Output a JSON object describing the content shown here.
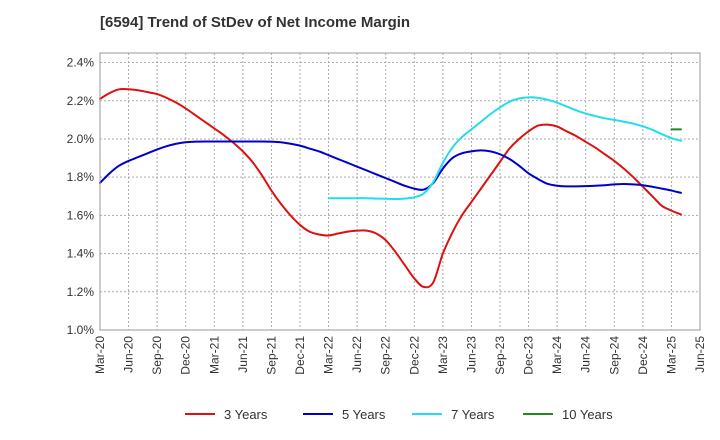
{
  "chart_data": {
    "type": "line",
    "title": "[6594]  Trend of StDev of Net Income Margin",
    "xlabel": "",
    "ylabel": "",
    "x_ticks": [
      "Mar-20",
      "Jun-20",
      "Sep-20",
      "Dec-20",
      "Mar-21",
      "Jun-21",
      "Sep-21",
      "Dec-21",
      "Mar-22",
      "Jun-22",
      "Sep-22",
      "Dec-22",
      "Mar-23",
      "Jun-23",
      "Sep-23",
      "Dec-23",
      "Mar-24",
      "Jun-24",
      "Sep-24",
      "Dec-24",
      "Mar-25",
      "Jun-25"
    ],
    "y_ticks": [
      "1.0%",
      "1.2%",
      "1.4%",
      "1.6%",
      "1.8%",
      "2.0%",
      "2.2%",
      "2.4%"
    ],
    "ylim": [
      1.0,
      2.45
    ],
    "grid": true,
    "legend_position": "bottom",
    "series": [
      {
        "name": "3 Years",
        "color": "#dd1111",
        "points": [
          [
            "Mar-20",
            2.21
          ],
          [
            "Apr-20",
            2.24
          ],
          [
            "May-20",
            2.26
          ],
          [
            "Jun-20",
            2.26
          ],
          [
            "Jul-20",
            2.255
          ],
          [
            "Aug-20",
            2.245
          ],
          [
            "Sep-20",
            2.235
          ],
          [
            "Oct-20",
            2.215
          ],
          [
            "Nov-20",
            2.19
          ],
          [
            "Dec-20",
            2.16
          ],
          [
            "Jan-21",
            2.125
          ],
          [
            "Feb-21",
            2.09
          ],
          [
            "Mar-21",
            2.055
          ],
          [
            "Apr-21",
            2.02
          ],
          [
            "May-21",
            1.98
          ],
          [
            "Jun-21",
            1.935
          ],
          [
            "Jul-21",
            1.88
          ],
          [
            "Aug-21",
            1.81
          ],
          [
            "Sep-21",
            1.73
          ],
          [
            "Oct-21",
            1.66
          ],
          [
            "Nov-21",
            1.6
          ],
          [
            "Dec-21",
            1.55
          ],
          [
            "Jan-22",
            1.515
          ],
          [
            "Feb-22",
            1.5
          ],
          [
            "Mar-22",
            1.495
          ],
          [
            "Apr-22",
            1.505
          ],
          [
            "May-22",
            1.515
          ],
          [
            "Jun-22",
            1.52
          ],
          [
            "Jul-22",
            1.52
          ],
          [
            "Aug-22",
            1.505
          ],
          [
            "Sep-22",
            1.47
          ],
          [
            "Oct-22",
            1.41
          ],
          [
            "Nov-22",
            1.34
          ],
          [
            "Dec-22",
            1.27
          ],
          [
            "Jan-23",
            1.225
          ],
          [
            "Feb-23",
            1.25
          ],
          [
            "Mar-23",
            1.4
          ],
          [
            "Apr-23",
            1.51
          ],
          [
            "May-23",
            1.6
          ],
          [
            "Jun-23",
            1.67
          ],
          [
            "Jul-23",
            1.74
          ],
          [
            "Aug-23",
            1.81
          ],
          [
            "Sep-23",
            1.88
          ],
          [
            "Oct-23",
            1.95
          ],
          [
            "Nov-23",
            2.0
          ],
          [
            "Dec-23",
            2.04
          ],
          [
            "Jan-24",
            2.07
          ],
          [
            "Feb-24",
            2.075
          ],
          [
            "Mar-24",
            2.065
          ],
          [
            "Apr-24",
            2.04
          ],
          [
            "May-24",
            2.015
          ],
          [
            "Jun-24",
            1.985
          ],
          [
            "Jul-24",
            1.955
          ],
          [
            "Aug-24",
            1.92
          ],
          [
            "Sep-24",
            1.885
          ],
          [
            "Oct-24",
            1.845
          ],
          [
            "Nov-24",
            1.8
          ],
          [
            "Dec-24",
            1.75
          ],
          [
            "Jan-25",
            1.7
          ],
          [
            "Feb-25",
            1.65
          ],
          [
            "Mar-25",
            1.625
          ],
          [
            "Apr-25",
            1.605
          ]
        ]
      },
      {
        "name": "5 Years",
        "color": "#0000cc",
        "points": [
          [
            "Mar-20",
            1.77
          ],
          [
            "Apr-20",
            1.82
          ],
          [
            "May-20",
            1.86
          ],
          [
            "Jun-20",
            1.885
          ],
          [
            "Jul-20",
            1.905
          ],
          [
            "Aug-20",
            1.925
          ],
          [
            "Sep-20",
            1.945
          ],
          [
            "Oct-20",
            1.962
          ],
          [
            "Nov-20",
            1.975
          ],
          [
            "Dec-20",
            1.983
          ],
          [
            "Jan-21",
            1.986
          ],
          [
            "Feb-21",
            1.987
          ],
          [
            "Mar-21",
            1.987
          ],
          [
            "Apr-21",
            1.987
          ],
          [
            "May-21",
            1.987
          ],
          [
            "Jun-21",
            1.987
          ],
          [
            "Jul-21",
            1.987
          ],
          [
            "Aug-21",
            1.987
          ],
          [
            "Sep-21",
            1.986
          ],
          [
            "Oct-21",
            1.983
          ],
          [
            "Nov-21",
            1.975
          ],
          [
            "Dec-21",
            1.965
          ],
          [
            "Jan-22",
            1.95
          ],
          [
            "Feb-22",
            1.935
          ],
          [
            "Mar-22",
            1.915
          ],
          [
            "Apr-22",
            1.895
          ],
          [
            "May-22",
            1.875
          ],
          [
            "Jun-22",
            1.855
          ],
          [
            "Jul-22",
            1.835
          ],
          [
            "Aug-22",
            1.815
          ],
          [
            "Sep-22",
            1.795
          ],
          [
            "Oct-22",
            1.775
          ],
          [
            "Nov-22",
            1.755
          ],
          [
            "Dec-22",
            1.74
          ],
          [
            "Jan-23",
            1.735
          ],
          [
            "Feb-23",
            1.77
          ],
          [
            "Mar-23",
            1.845
          ],
          [
            "Apr-23",
            1.9
          ],
          [
            "May-23",
            1.925
          ],
          [
            "Jun-23",
            1.935
          ],
          [
            "Jul-23",
            1.94
          ],
          [
            "Aug-23",
            1.935
          ],
          [
            "Sep-23",
            1.92
          ],
          [
            "Oct-23",
            1.895
          ],
          [
            "Nov-23",
            1.86
          ],
          [
            "Dec-23",
            1.82
          ],
          [
            "Jan-24",
            1.79
          ],
          [
            "Feb-24",
            1.765
          ],
          [
            "Mar-24",
            1.755
          ],
          [
            "Apr-24",
            1.752
          ],
          [
            "May-24",
            1.752
          ],
          [
            "Jun-24",
            1.753
          ],
          [
            "Jul-24",
            1.755
          ],
          [
            "Aug-24",
            1.758
          ],
          [
            "Sep-24",
            1.762
          ],
          [
            "Oct-24",
            1.764
          ],
          [
            "Nov-24",
            1.762
          ],
          [
            "Dec-24",
            1.758
          ],
          [
            "Jan-25",
            1.75
          ],
          [
            "Feb-25",
            1.74
          ],
          [
            "Mar-25",
            1.73
          ],
          [
            "Apr-25",
            1.718
          ]
        ]
      },
      {
        "name": "7 Years",
        "color": "#22ddee",
        "points": [
          [
            "Mar-22",
            1.69
          ],
          [
            "Apr-22",
            1.69
          ],
          [
            "May-22",
            1.69
          ],
          [
            "Jun-22",
            1.69
          ],
          [
            "Jul-22",
            1.69
          ],
          [
            "Aug-22",
            1.688
          ],
          [
            "Sep-22",
            1.687
          ],
          [
            "Oct-22",
            1.686
          ],
          [
            "Nov-22",
            1.688
          ],
          [
            "Dec-22",
            1.695
          ],
          [
            "Jan-23",
            1.715
          ],
          [
            "Feb-23",
            1.775
          ],
          [
            "Mar-23",
            1.875
          ],
          [
            "Apr-23",
            1.955
          ],
          [
            "May-23",
            2.01
          ],
          [
            "Jun-23",
            2.05
          ],
          [
            "Jul-23",
            2.09
          ],
          [
            "Aug-23",
            2.13
          ],
          [
            "Sep-23",
            2.165
          ],
          [
            "Oct-23",
            2.195
          ],
          [
            "Nov-23",
            2.212
          ],
          [
            "Dec-23",
            2.218
          ],
          [
            "Jan-24",
            2.215
          ],
          [
            "Feb-24",
            2.205
          ],
          [
            "Mar-24",
            2.19
          ],
          [
            "Apr-24",
            2.17
          ],
          [
            "May-24",
            2.15
          ],
          [
            "Jun-24",
            2.133
          ],
          [
            "Jul-24",
            2.12
          ],
          [
            "Aug-24",
            2.108
          ],
          [
            "Sep-24",
            2.1
          ],
          [
            "Oct-24",
            2.09
          ],
          [
            "Nov-24",
            2.08
          ],
          [
            "Dec-24",
            2.066
          ],
          [
            "Jan-25",
            2.048
          ],
          [
            "Feb-25",
            2.025
          ],
          [
            "Mar-25",
            2.005
          ],
          [
            "Apr-25",
            1.99
          ]
        ]
      },
      {
        "name": "10 Years",
        "color": "#228822",
        "points": [
          [
            "Mar-25",
            2.05
          ],
          [
            "Apr-25",
            2.05
          ]
        ]
      }
    ]
  }
}
